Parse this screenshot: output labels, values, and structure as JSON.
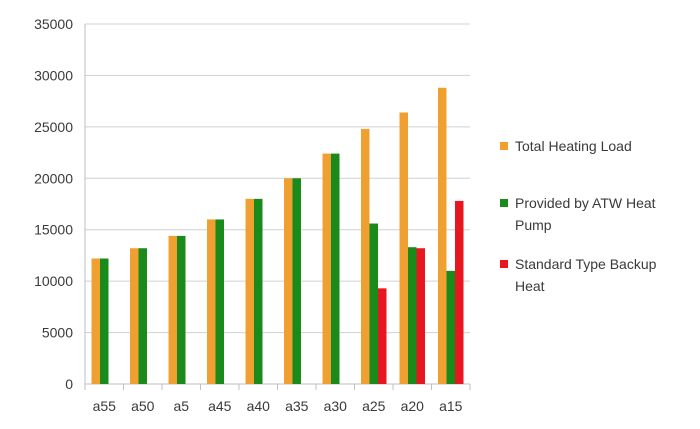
{
  "chart_data": {
    "type": "bar",
    "categories": [
      "a55",
      "a50",
      "a5",
      "a45",
      "a40",
      "a35",
      "a30",
      "a25",
      "a20",
      "a15"
    ],
    "series": [
      {
        "name": "Total Heating Load",
        "color": "#f0a030",
        "values": [
          12200,
          13200,
          14400,
          16000,
          18000,
          20000,
          22400,
          24800,
          26400,
          28800
        ]
      },
      {
        "name": "Provided by ATW Heat Pump",
        "color": "#1a8a1a",
        "values": [
          12200,
          13200,
          14400,
          16000,
          18000,
          20000,
          22400,
          15600,
          13300,
          11000
        ]
      },
      {
        "name": "Standard Type Backup Heat",
        "color": "#e8171f",
        "values": [
          0,
          0,
          0,
          0,
          0,
          0,
          0,
          9300,
          13200,
          17800
        ]
      }
    ],
    "ylim": [
      0,
      35000
    ],
    "yticks": [
      0,
      5000,
      10000,
      15000,
      20000,
      25000,
      30000,
      35000
    ],
    "grid": true,
    "legend_position": "right",
    "title": "",
    "xlabel": "",
    "ylabel": ""
  },
  "legend": {
    "items": [
      {
        "lines": [
          "Total Heating Load"
        ],
        "color": "#f0a030"
      },
      {
        "lines": [
          "Provided by ATW Heat",
          "Pump"
        ],
        "color": "#1a8a1a"
      },
      {
        "lines": [
          "Standard Type Backup",
          "Heat"
        ],
        "color": "#e8171f"
      }
    ]
  }
}
